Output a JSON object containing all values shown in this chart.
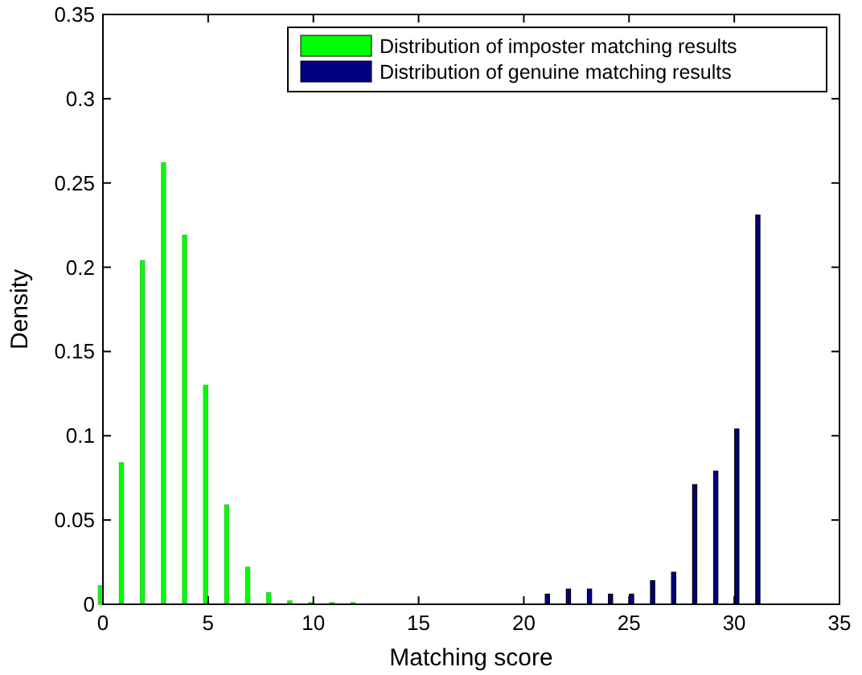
{
  "chart_data": {
    "type": "bar",
    "xlabel": "Matching score",
    "ylabel": "Density",
    "xlim": [
      0,
      35
    ],
    "xticks": [
      0,
      5,
      10,
      15,
      20,
      25,
      30,
      35
    ],
    "ylim": [
      0,
      0.35
    ],
    "yticks": [
      0,
      0.05,
      0.1,
      0.15,
      0.2,
      0.25,
      0.3,
      0.35
    ],
    "grid": false,
    "legend": "top right",
    "series": [
      {
        "name": "Distribution of imposter matching results",
        "color": "#00ff00",
        "x": [
          0,
          1,
          2,
          3,
          4,
          5,
          6,
          7,
          8,
          9,
          10,
          11,
          12
        ],
        "values": [
          0.011,
          0.084,
          0.204,
          0.262,
          0.219,
          0.13,
          0.059,
          0.022,
          0.007,
          0.002,
          0.001,
          0.001,
          0.001
        ]
      },
      {
        "name": "Distribution of genuine matching results",
        "color": "#000080",
        "x": [
          21,
          22,
          23,
          24,
          25,
          26,
          27,
          28,
          29,
          30,
          31
        ],
        "values": [
          0.006,
          0.009,
          0.009,
          0.006,
          0.006,
          0.014,
          0.019,
          0.071,
          0.079,
          0.104,
          0.231
        ]
      }
    ]
  }
}
